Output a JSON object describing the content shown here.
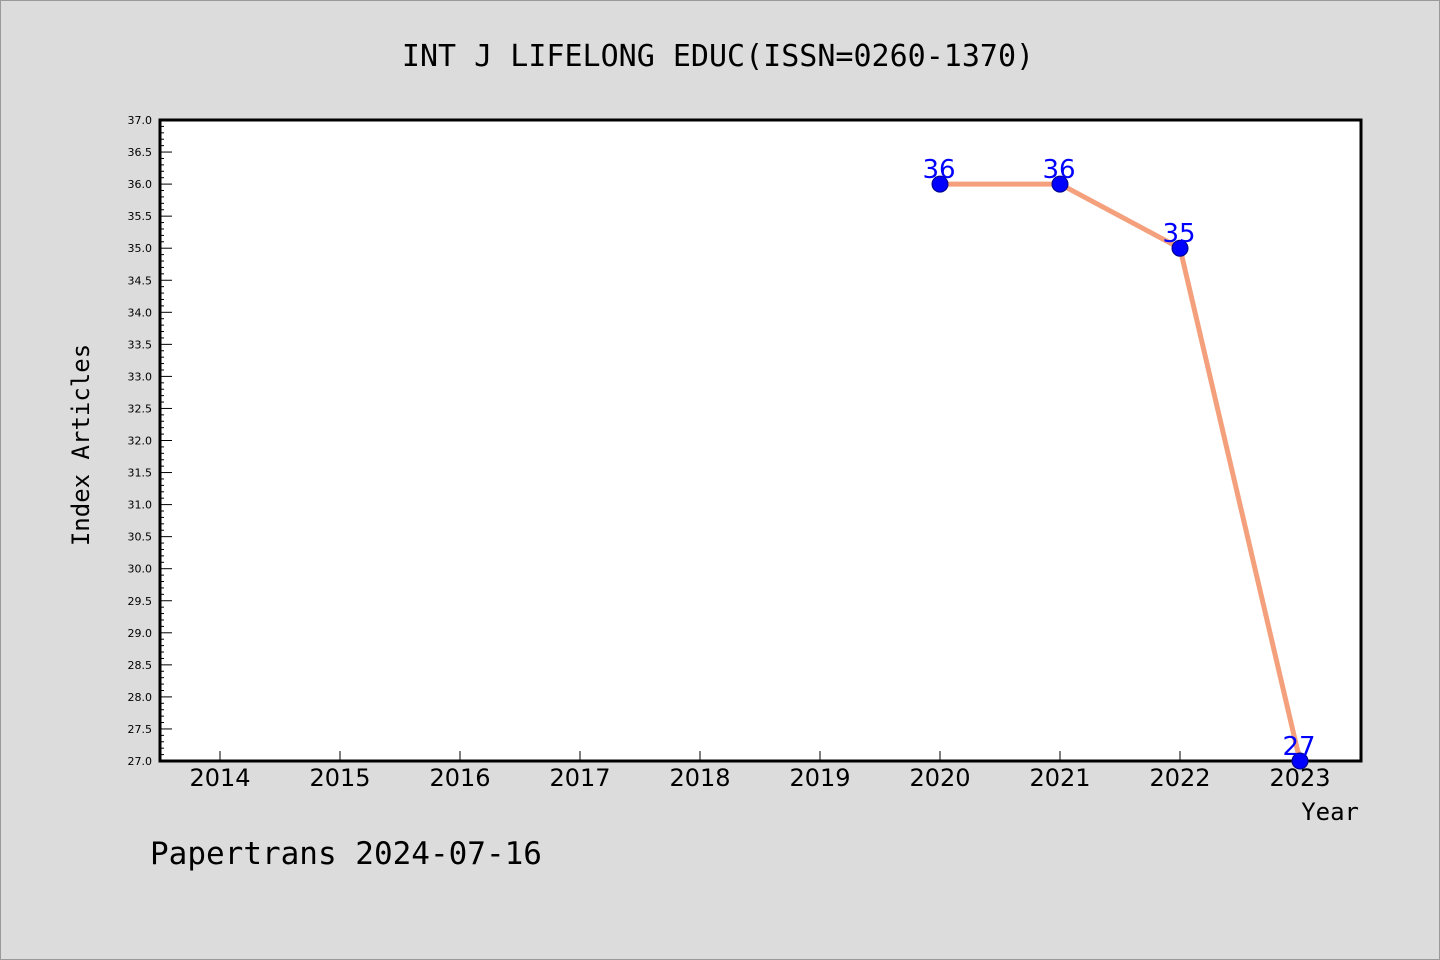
{
  "chart_data": {
    "type": "line",
    "title": "INT J LIFELONG EDUC(ISSN=0260-1370)",
    "xlabel": "Year",
    "ylabel": "Index Articles",
    "categories": [
      "2014",
      "2015",
      "2016",
      "2017",
      "2018",
      "2019",
      "2020",
      "2021",
      "2022",
      "2023"
    ],
    "series": [
      {
        "points": [
          {
            "x": "2020",
            "y": 36
          },
          {
            "x": "2021",
            "y": 36
          },
          {
            "x": "2022",
            "y": 35
          },
          {
            "x": "2023",
            "y": 27
          }
        ],
        "labels": [
          "36",
          "36",
          "35",
          "27"
        ],
        "line_color": "#f4a07c",
        "marker_color": "#0000ff"
      }
    ],
    "ylim": [
      27.0,
      37.0
    ],
    "yticks": [
      "27.0",
      "27.5",
      "28.0",
      "28.5",
      "29.0",
      "29.5",
      "30.0",
      "30.5",
      "31.0",
      "31.5",
      "32.0",
      "32.5",
      "33.0",
      "33.5",
      "34.0",
      "34.5",
      "35.0",
      "35.5",
      "36.0",
      "36.5",
      "37.0"
    ],
    "grid": false,
    "colors": {
      "background": "#dcdcdc",
      "plot_background": "#ffffff",
      "label": "#0000ff"
    }
  },
  "footer": "Papertrans 2024-07-16"
}
